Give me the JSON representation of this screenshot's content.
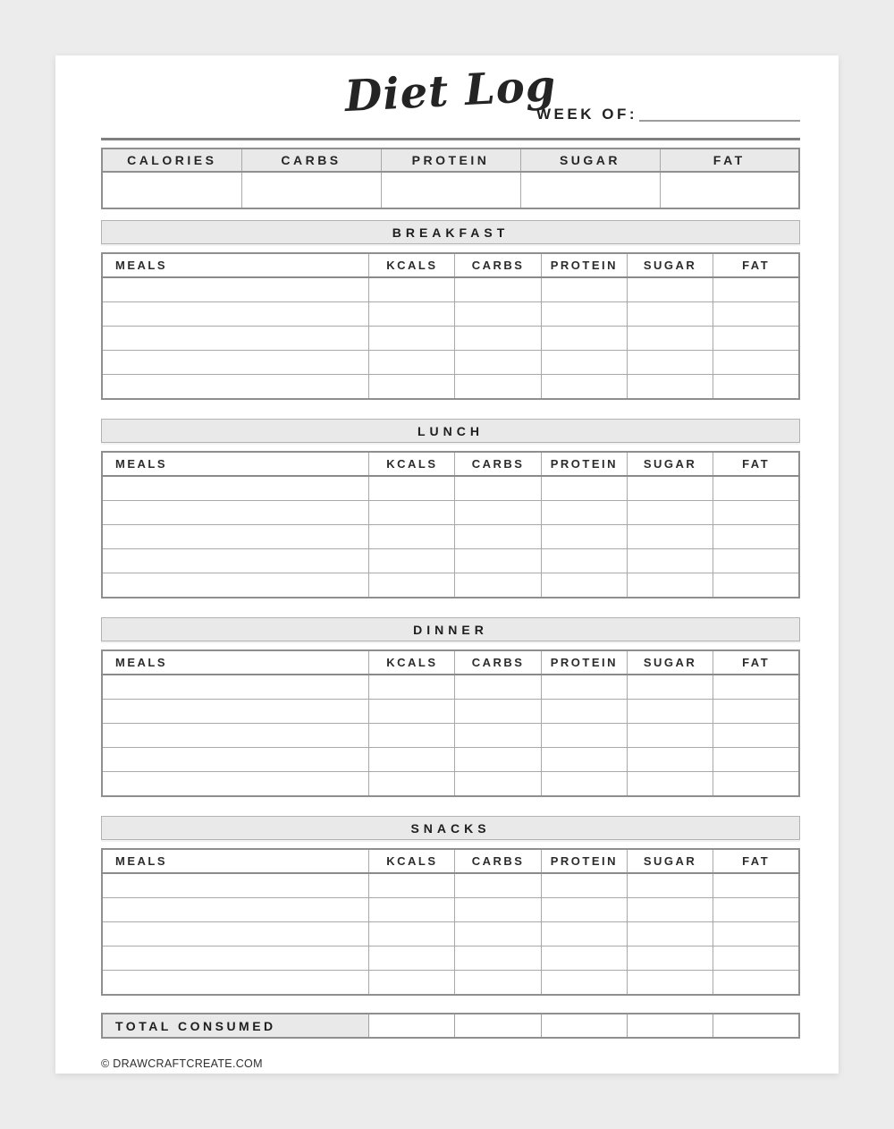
{
  "header": {
    "title": "Diet Log",
    "week_of_label": "WEEK OF:"
  },
  "summary": {
    "columns": [
      "CALORIES",
      "CARBS",
      "PROTEIN",
      "SUGAR",
      "FAT"
    ],
    "values": [
      "",
      "",
      "",
      "",
      ""
    ]
  },
  "meal_columns": [
    "MEALS",
    "KCALS",
    "CARBS",
    "PROTEIN",
    "SUGAR",
    "FAT"
  ],
  "sections": [
    {
      "title": "BREAKFAST",
      "rows": 5
    },
    {
      "title": "LUNCH",
      "rows": 5
    },
    {
      "title": "DINNER",
      "rows": 5
    },
    {
      "title": "SNACKS",
      "rows": 5
    }
  ],
  "total": {
    "label": "TOTAL CONSUMED",
    "values": [
      "",
      "",
      "",
      "",
      ""
    ]
  },
  "footer": {
    "copyright": "© DRAWCRAFTCREATE.COM"
  },
  "colors": {
    "page_background": "#ffffff",
    "outer_background": "#ececec",
    "header_fill": "#e9e9e9",
    "border_outer": "#8f8f8f",
    "border_inner": "#a9a9a9",
    "text": "#222222"
  }
}
